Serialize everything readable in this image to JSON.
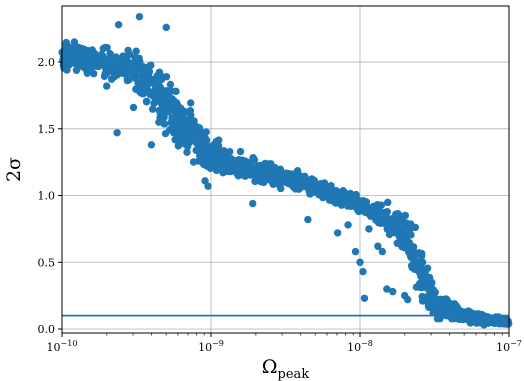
{
  "chart_data": {
    "type": "scatter",
    "title": "",
    "xlabel": "Ω",
    "xlabel_sub": "peak",
    "ylabel": "2σ",
    "xscale": "log",
    "xlim": [
      1e-10,
      1e-07
    ],
    "ylim": [
      -0.03,
      2.42
    ],
    "x_ticks": [
      {
        "base": "10",
        "exp": "−10",
        "value": 1e-10
      },
      {
        "base": "10",
        "exp": "−9",
        "value": 1e-09
      },
      {
        "base": "10",
        "exp": "−8",
        "value": 1e-08
      },
      {
        "base": "10",
        "exp": "−7",
        "value": 1e-07
      }
    ],
    "y_ticks": [
      "0.0",
      "0.5",
      "1.0",
      "1.5",
      "2.0"
    ],
    "y_tick_values": [
      0.0,
      0.5,
      1.0,
      1.5,
      2.0
    ],
    "grid": true,
    "marker_color": "#1f77b4",
    "reference_line": {
      "y": 0.1,
      "color": "#1f77b4"
    },
    "trend_segments": [
      [
        -10.0,
        2.05,
        0.08
      ],
      [
        -9.8,
        2.02,
        0.09
      ],
      [
        -9.55,
        1.95,
        0.12
      ],
      [
        -9.35,
        1.75,
        0.16
      ],
      [
        -9.15,
        1.48,
        0.15
      ],
      [
        -9.0,
        1.3,
        0.1
      ],
      [
        -8.7,
        1.18,
        0.07
      ],
      [
        -8.4,
        1.1,
        0.06
      ],
      [
        -8.2,
        1.02,
        0.05
      ],
      [
        -8.0,
        0.93,
        0.05
      ],
      [
        -7.85,
        0.85,
        0.07
      ],
      [
        -7.7,
        0.75,
        0.12
      ],
      [
        -7.6,
        0.45,
        0.2
      ],
      [
        -7.5,
        0.2,
        0.1
      ],
      [
        -7.3,
        0.1,
        0.04
      ],
      [
        -7.15,
        0.07,
        0.03
      ],
      [
        -7.0,
        0.05,
        0.02
      ]
    ],
    "n_points": 1400,
    "outliers": [
      [
        -9.48,
        2.34
      ],
      [
        -9.62,
        2.28
      ],
      [
        -9.3,
        2.26
      ],
      [
        -9.7,
        1.82
      ],
      [
        -9.52,
        1.66
      ],
      [
        -9.35,
        1.55
      ],
      [
        -9.63,
        1.47
      ],
      [
        -9.25,
        1.52
      ],
      [
        -9.2,
        1.42
      ],
      [
        -9.4,
        1.38
      ],
      [
        -9.04,
        1.11
      ],
      [
        -9.02,
        1.07
      ],
      [
        -8.72,
        0.94
      ],
      [
        -8.35,
        0.82
      ],
      [
        -8.15,
        0.72
      ],
      [
        -8.08,
        0.78
      ],
      [
        -8.03,
        0.58
      ],
      [
        -8.0,
        0.5
      ],
      [
        -7.98,
        0.43
      ],
      [
        -7.94,
        0.75
      ],
      [
        -7.97,
        0.23
      ],
      [
        -7.88,
        0.62
      ],
      [
        -7.85,
        0.58
      ],
      [
        -7.82,
        0.3
      ],
      [
        -7.78,
        0.28
      ],
      [
        -7.7,
        0.25
      ],
      [
        -7.68,
        0.22
      ],
      [
        -7.58,
        0.21
      ],
      [
        -7.58,
        0.5
      ],
      [
        -7.56,
        0.38
      ]
    ]
  }
}
